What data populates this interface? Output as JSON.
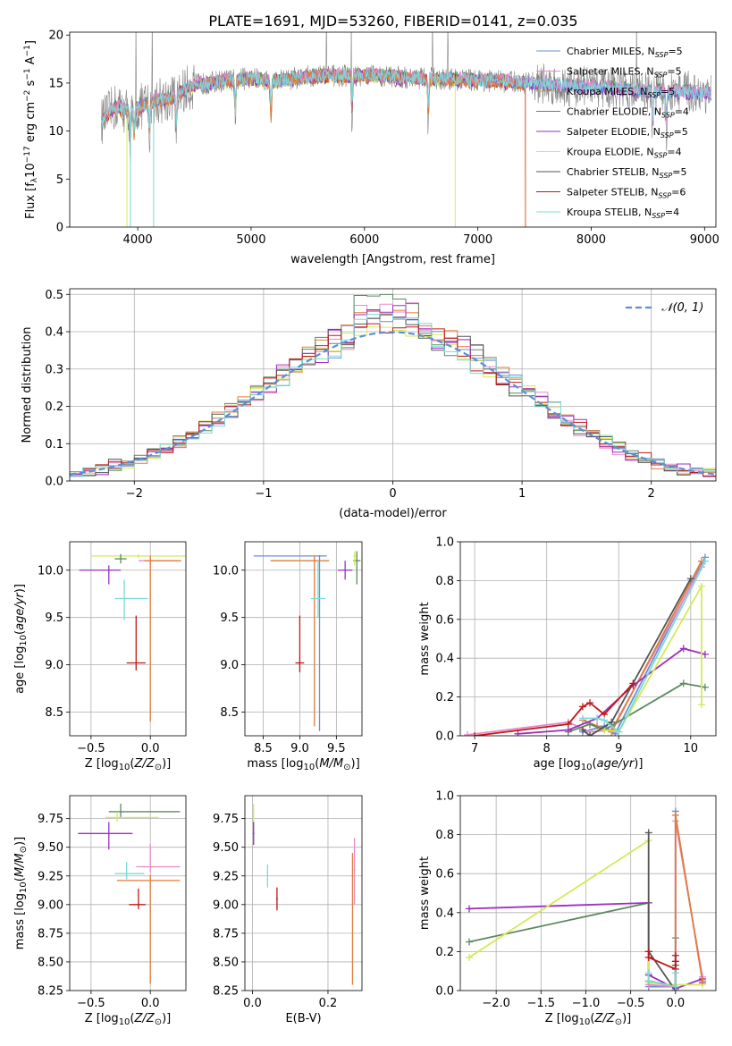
{
  "title": "PLATE=1691, MJD=53260, FIBERID=0141, z=0.035",
  "colors": {
    "Chabrier MILES": "#6b8fd6",
    "Salpeter MILES": "#e88ac8",
    "Kroupa MILES": "#c9a227",
    "Chabrier ELODIE": "#5a8a5e",
    "Salpeter ELODIE": "#9b2fc0",
    "Kroupa ELODIE": "#d4ea55",
    "Chabrier STELIB": "#555555",
    "Salpeter STELIB": "#c01818",
    "Kroupa STELIB": "#7ed8d8",
    "orange": "#e07b39",
    "normal": "#5b8fd6",
    "data": "#808080"
  },
  "chart_data": [
    {
      "id": "spectrum",
      "type": "line",
      "xlabel": "wavelength [Angstrom, rest frame]",
      "ylabel": "Flux [f_λ10^-17 erg cm^-2 s^-1 A^-1]",
      "xlim": [
        3400,
        9100
      ],
      "ylim": [
        0,
        20.3
      ],
      "xticks": [
        4000,
        5000,
        6000,
        7000,
        8000,
        9000
      ],
      "yticks": [
        0,
        5,
        10,
        15,
        20
      ],
      "legend_position": "upper-right",
      "legend": [
        {
          "prefix": "Chabrier MILES, N",
          "sub": "SSP",
          "suffix": "=5"
        },
        {
          "prefix": "Salpeter MILES, N",
          "sub": "SSP",
          "suffix": "=5"
        },
        {
          "prefix": "Kroupa MILES, N",
          "sub": "SSP",
          "suffix": "=5"
        },
        {
          "prefix": "Chabrier ELODIE, N",
          "sub": "SSP",
          "suffix": "=4"
        },
        {
          "prefix": "Salpeter ELODIE, N",
          "sub": "SSP",
          "suffix": "=5"
        },
        {
          "prefix": "Kroupa ELODIE, N",
          "sub": "SSP",
          "suffix": "=4"
        },
        {
          "prefix": "Chabrier STELIB, N",
          "sub": "SSP",
          "suffix": "=5"
        },
        {
          "prefix": "Salpeter STELIB, N",
          "sub": "SSP",
          "suffix": "=6"
        },
        {
          "prefix": "Kroupa STELIB, N",
          "sub": "SSP",
          "suffix": "=4"
        }
      ],
      "continuum": [
        [
          3680,
          11
        ],
        [
          3800,
          12.5
        ],
        [
          3950,
          12
        ],
        [
          4100,
          13
        ],
        [
          4300,
          13.5
        ],
        [
          4500,
          14.8
        ],
        [
          4800,
          15.3
        ],
        [
          5000,
          15.5
        ],
        [
          5200,
          15.2
        ],
        [
          5500,
          15.7
        ],
        [
          6000,
          15.8
        ],
        [
          6500,
          15.5
        ],
        [
          7000,
          15.3
        ],
        [
          7500,
          15.0
        ],
        [
          8000,
          14.6
        ],
        [
          8500,
          14.2
        ],
        [
          9000,
          14.0
        ]
      ],
      "absorption": [
        [
          3934,
          10
        ],
        [
          3968,
          9.5
        ],
        [
          4102,
          11
        ],
        [
          4340,
          11.5
        ],
        [
          4861,
          12.8
        ],
        [
          5175,
          13
        ],
        [
          5890,
          14
        ],
        [
          6563,
          13.5
        ],
        [
          8542,
          12.8
        ],
        [
          8662,
          13
        ]
      ]
    },
    {
      "id": "residuals",
      "type": "step",
      "xlabel": "(data-model)/error",
      "ylabel": "Normed distribution",
      "xlim": [
        -2.5,
        2.5
      ],
      "ylim": [
        0,
        0.515
      ],
      "xticks": [
        -2,
        -1,
        0,
        1,
        2
      ],
      "yticks": [
        0.0,
        0.1,
        0.2,
        0.3,
        0.4,
        0.5
      ],
      "legend_label": "𝒩(0, 1)",
      "bin_width": 0.1,
      "peak_heights": [
        0.44,
        0.48,
        0.46,
        0.5,
        0.47,
        0.42,
        0.45,
        0.43,
        0.46
      ]
    },
    {
      "id": "age_vs_Z",
      "type": "errorbar",
      "xlabel": "Z [log10(Z/Z⊙)]",
      "ylabel": "age [log10(age/yr)]",
      "xlim": [
        -0.68,
        0.3
      ],
      "ylim": [
        8.25,
        10.3
      ],
      "xticks": [
        -0.5,
        0.0
      ],
      "yticks": [
        8.5,
        9.0,
        9.5,
        10.0
      ],
      "points": [
        {
          "model": "Kroupa ELODIE",
          "x": -0.1,
          "y": 10.15,
          "xerr": [
            0.4,
            0.4
          ],
          "yerr": [
            0.02,
            0.02
          ]
        },
        {
          "model": "Chabrier ELODIE",
          "x": -0.25,
          "y": 10.12,
          "xerr": [
            0.05,
            0.05
          ],
          "yerr": [
            0.05,
            0.05
          ]
        },
        {
          "model": "Salpeter ELODIE",
          "x": -0.35,
          "y": 10.0,
          "xerr": [
            0.25,
            0.1
          ],
          "yerr": [
            0.15,
            0.05
          ]
        },
        {
          "model": "Salpeter MILES",
          "x": 0.0,
          "y": 10.1,
          "xerr": [
            0.1,
            0.26
          ],
          "yerr": [
            0.05,
            0.05
          ]
        },
        {
          "model": "orange",
          "x": 0.0,
          "y": 10.1,
          "xerr": [
            0.05,
            0.26
          ],
          "yerr": [
            1.7,
            0.05
          ]
        },
        {
          "model": "Kroupa STELIB",
          "x": -0.22,
          "y": 9.7,
          "xerr": [
            0.08,
            0.2
          ],
          "yerr": [
            0.23,
            0.2
          ]
        },
        {
          "model": "Salpeter STELIB",
          "x": -0.12,
          "y": 9.02,
          "xerr": [
            0.08,
            0.08
          ],
          "yerr": [
            0.08,
            0.5
          ]
        }
      ]
    },
    {
      "id": "age_vs_mass",
      "type": "errorbar",
      "xlabel": "mass [log10(M/M⊙)]",
      "ylabel": "",
      "xlim": [
        8.25,
        9.85
      ],
      "ylim": [
        8.25,
        10.3
      ],
      "xticks": [
        8.5,
        9.0,
        9.5
      ],
      "yticks": [
        8.5,
        9.0,
        9.5,
        10.0
      ],
      "points": [
        {
          "model": "Chabrier ELODIE",
          "x": 9.78,
          "y": 10.1,
          "xerr": [
            0.05,
            0.05
          ],
          "yerr": [
            0.25,
            0.1
          ]
        },
        {
          "model": "Kroupa ELODIE",
          "x": 9.75,
          "y": 10.15,
          "xerr": [
            0.02,
            0.02
          ],
          "yerr": [
            0.1,
            0.05
          ]
        },
        {
          "model": "Salpeter ELODIE",
          "x": 9.62,
          "y": 10.0,
          "xerr": [
            0.1,
            0.1
          ],
          "yerr": [
            0.1,
            0.1
          ]
        },
        {
          "model": "Chabrier MILES",
          "x": 9.27,
          "y": 10.15,
          "xerr": [
            0.9,
            0.1
          ],
          "yerr": [
            1.85,
            0.01
          ]
        },
        {
          "model": "orange",
          "x": 9.2,
          "y": 10.1,
          "xerr": [
            0.6,
            0.2
          ],
          "yerr": [
            1.75,
            0.05
          ]
        },
        {
          "model": "Kroupa STELIB",
          "x": 9.25,
          "y": 9.7,
          "xerr": [
            0.1,
            0.1
          ],
          "yerr": [
            0.2,
            0.4
          ]
        },
        {
          "model": "Salpeter STELIB",
          "x": 9.0,
          "y": 9.02,
          "xerr": [
            0.06,
            0.06
          ],
          "yerr": [
            0.1,
            0.5
          ]
        }
      ]
    },
    {
      "id": "weight_vs_age",
      "type": "line",
      "xlabel": "age [log10(age/yr)]",
      "ylabel": "mass weight",
      "xlim": [
        6.8,
        10.35
      ],
      "ylim": [
        0,
        1.0
      ],
      "xticks": [
        7,
        8,
        9,
        10
      ],
      "yticks": [
        0.0,
        0.2,
        0.4,
        0.6,
        0.8,
        1.0
      ],
      "series": [
        {
          "model": "Chabrier MILES",
          "x": [
            8.5,
            8.8,
            8.95,
            10.2
          ],
          "y": [
            0.02,
            0.05,
            0.01,
            0.92
          ]
        },
        {
          "model": "Salpeter MILES",
          "x": [
            6.9,
            8.3,
            8.6,
            8.9,
            10.15
          ],
          "y": [
            0.005,
            0.07,
            0.02,
            0.03,
            0.87
          ]
        },
        {
          "model": "orange",
          "x": [
            8.5,
            8.7,
            8.9,
            10.15
          ],
          "y": [
            0.08,
            0.05,
            0.02,
            0.9
          ]
        },
        {
          "model": "Chabrier ELODIE",
          "x": [
            8.3,
            8.6,
            8.8,
            9.9,
            10.2
          ],
          "y": [
            0.02,
            0.06,
            0.03,
            0.27,
            0.25
          ]
        },
        {
          "model": "Salpeter ELODIE",
          "x": [
            7.6,
            8.3,
            8.7,
            9.2,
            9.9,
            10.2
          ],
          "y": [
            0.01,
            0.03,
            0.09,
            0.26,
            0.45,
            0.42
          ]
        },
        {
          "model": "Kroupa ELODIE",
          "x": [
            8.8,
            9.0,
            10.15,
            10.15
          ],
          "y": [
            0.03,
            0.02,
            0.77,
            0.16
          ]
        },
        {
          "model": "Chabrier STELIB",
          "x": [
            8.5,
            8.6,
            8.9,
            10.0
          ],
          "y": [
            0.03,
            0.0,
            0.07,
            0.81
          ]
        },
        {
          "model": "Salpeter STELIB",
          "x": [
            7.0,
            8.3,
            8.5,
            8.6,
            8.8,
            9.2
          ],
          "y": [
            0.0,
            0.06,
            0.15,
            0.17,
            0.11,
            0.27
          ]
        },
        {
          "model": "Kroupa STELIB",
          "x": [
            8.5,
            8.7,
            8.8,
            9.0,
            10.2
          ],
          "y": [
            0.09,
            0.09,
            0.08,
            0.02,
            0.9
          ]
        }
      ]
    },
    {
      "id": "mass_vs_Z",
      "type": "errorbar",
      "xlabel": "Z [log10(Z/Z⊙)]",
      "ylabel": "mass [log10(M/M⊙)]",
      "xlim": [
        -0.68,
        0.3
      ],
      "ylim": [
        8.25,
        9.95
      ],
      "xticks": [
        -0.5,
        0.0
      ],
      "yticks": [
        8.25,
        8.5,
        8.75,
        9.0,
        9.25,
        9.5,
        9.75
      ],
      "points": [
        {
          "model": "Chabrier ELODIE",
          "x": -0.25,
          "y": 9.81,
          "xerr": [
            0.1,
            0.5
          ],
          "yerr": [
            0.05,
            0.07
          ]
        },
        {
          "model": "Kroupa ELODIE",
          "x": -0.28,
          "y": 9.76,
          "xerr": [
            0.1,
            0.35
          ],
          "yerr": [
            0.04,
            0.05
          ]
        },
        {
          "model": "Salpeter ELODIE",
          "x": -0.35,
          "y": 9.62,
          "xerr": [
            0.26,
            0.2
          ],
          "yerr": [
            0.14,
            0.1
          ]
        },
        {
          "model": "Salpeter MILES",
          "x": 0.0,
          "y": 9.33,
          "xerr": [
            0.12,
            0.25
          ],
          "yerr": [
            0.05,
            0.2
          ]
        },
        {
          "model": "Kroupa STELIB",
          "x": -0.2,
          "y": 9.27,
          "xerr": [
            0.1,
            0.15
          ],
          "yerr": [
            0.05,
            0.1
          ]
        },
        {
          "model": "orange",
          "x": 0.0,
          "y": 9.21,
          "xerr": [
            0.28,
            0.25
          ],
          "yerr": [
            0.9,
            0.05
          ]
        },
        {
          "model": "Salpeter STELIB",
          "x": -0.1,
          "y": 9.0,
          "xerr": [
            0.08,
            0.06
          ],
          "yerr": [
            0.04,
            0.14
          ]
        }
      ]
    },
    {
      "id": "mass_vs_EBV",
      "type": "errorbar",
      "xlabel": "E(B-V)",
      "ylabel": "",
      "xlim": [
        -0.02,
        0.29
      ],
      "ylim": [
        8.25,
        9.95
      ],
      "xticks": [
        0.0,
        0.2
      ],
      "yticks": [
        8.25,
        8.5,
        8.75,
        9.0,
        9.25,
        9.5,
        9.75
      ],
      "points": [
        {
          "model": "Kroupa ELODIE",
          "x": 0.003,
          "y": 9.75,
          "xerr": [
            0.002,
            0.002
          ],
          "yerr": [
            0.1,
            0.13
          ]
        },
        {
          "model": "Salpeter ELODIE",
          "x": 0.003,
          "y": 9.62,
          "xerr": [
            0.002,
            0.002
          ],
          "yerr": [
            0.1,
            0.1
          ]
        },
        {
          "model": "Kroupa STELIB",
          "x": 0.04,
          "y": 9.25,
          "xerr": [
            0.002,
            0.002
          ],
          "yerr": [
            0.1,
            0.1
          ]
        },
        {
          "model": "Salpeter STELIB",
          "x": 0.065,
          "y": 9.05,
          "xerr": [
            0.002,
            0.002
          ],
          "yerr": [
            0.1,
            0.1
          ]
        },
        {
          "model": "Salpeter MILES",
          "x": 0.27,
          "y": 9.3,
          "xerr": [
            0.002,
            0.002
          ],
          "yerr": [
            0.3,
            0.28
          ]
        },
        {
          "model": "orange",
          "x": 0.265,
          "y": 9.25,
          "xerr": [
            0.002,
            0.002
          ],
          "yerr": [
            0.95,
            0.2
          ]
        }
      ]
    },
    {
      "id": "weight_vs_Z",
      "type": "line",
      "xlabel": "Z [log10(Z/Z⊙)]",
      "ylabel": "mass weight",
      "xlim": [
        -2.4,
        0.45
      ],
      "ylim": [
        0,
        1.0
      ],
      "xticks": [
        -2.0,
        -1.5,
        -1.0,
        -0.5,
        0.0
      ],
      "yticks": [
        0.0,
        0.2,
        0.4,
        0.6,
        0.8,
        1.0
      ],
      "series": [
        {
          "model": "Chabrier ELODIE",
          "x": [
            -2.3,
            -0.3,
            -0.3,
            0.0,
            0.0
          ],
          "y": [
            0.25,
            0.45,
            0.05,
            0.02,
            0.27
          ]
        },
        {
          "model": "Salpeter ELODIE",
          "x": [
            -2.3,
            -0.3,
            -0.3,
            0.0,
            0.3,
            0.3
          ],
          "y": [
            0.42,
            0.45,
            0.08,
            0.01,
            0.06,
            0.04
          ]
        },
        {
          "model": "Kroupa ELODIE",
          "x": [
            -2.3,
            -0.3,
            -0.3,
            0.0,
            0.3
          ],
          "y": [
            0.17,
            0.77,
            0.04,
            0.03,
            0.03
          ]
        },
        {
          "model": "Chabrier MILES",
          "x": [
            -0.3,
            -0.3,
            0.0,
            0.0
          ],
          "y": [
            0.05,
            0.02,
            0.02,
            0.92
          ]
        },
        {
          "model": "Salpeter MILES",
          "x": [
            -0.3,
            0.0,
            0.0,
            0.3
          ],
          "y": [
            0.03,
            0.02,
            0.87,
            0.07
          ]
        },
        {
          "model": "orange",
          "x": [
            -0.3,
            0.0,
            0.0,
            0.3
          ],
          "y": [
            0.05,
            0.02,
            0.9,
            0.05
          ]
        },
        {
          "model": "Chabrier STELIB",
          "x": [
            -0.3,
            -0.3,
            0.0,
            0.0
          ],
          "y": [
            0.81,
            0.2,
            0.0,
            0.13
          ]
        },
        {
          "model": "Salpeter STELIB",
          "x": [
            -0.3,
            -0.3,
            0.0,
            0.0,
            0.0
          ],
          "y": [
            0.2,
            0.17,
            0.11,
            0.15,
            0.18
          ]
        },
        {
          "model": "Kroupa STELIB",
          "x": [
            -0.3,
            -0.3,
            0.0,
            0.0
          ],
          "y": [
            0.09,
            0.05,
            0.02,
            0.09
          ]
        }
      ]
    }
  ]
}
